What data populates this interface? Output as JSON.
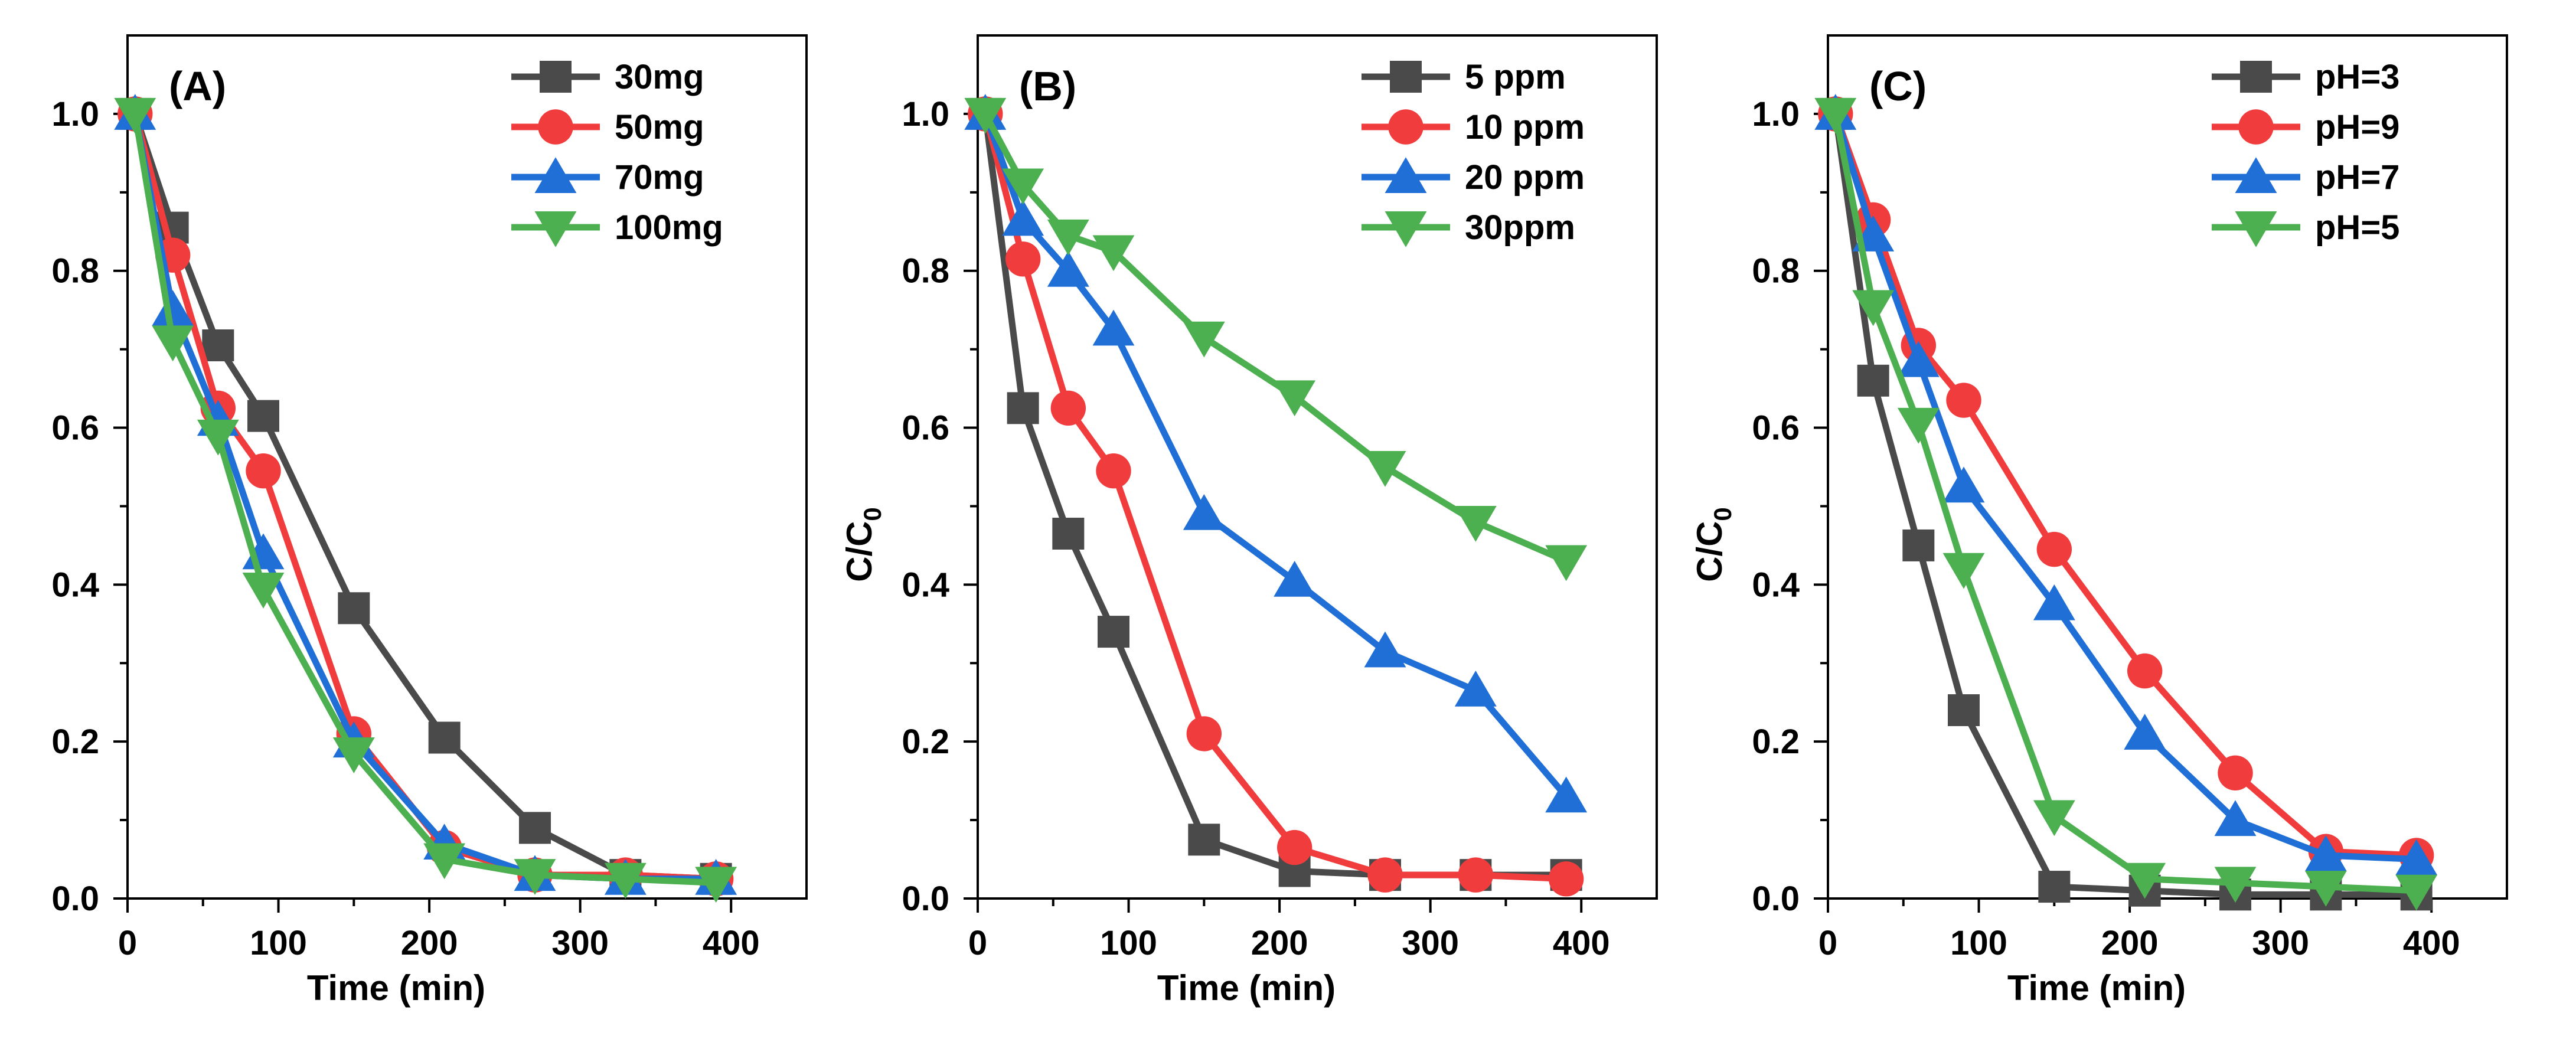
{
  "chart_data": [
    {
      "type": "line",
      "panel_label": "(A)",
      "xlabel": "Time (min)",
      "ylabel_main": "C/C",
      "ylabel_sub": "0",
      "ylabel_visible": false,
      "xlim": [
        0,
        450
      ],
      "ylim": [
        0,
        1.1
      ],
      "x_ticks": [
        0,
        100,
        200,
        300,
        400
      ],
      "y_ticks": [
        0.0,
        0.2,
        0.4,
        0.6,
        0.8,
        1.0
      ],
      "x_tick_labels": [
        "0",
        "100",
        "200",
        "300",
        "400"
      ],
      "y_tick_labels": [
        "0.0",
        "0.2",
        "0.4",
        "0.6",
        "0.8",
        "1.0"
      ],
      "legend_position": "top-right",
      "x": [
        5,
        30,
        60,
        90,
        150,
        210,
        270,
        330,
        390
      ],
      "series": [
        {
          "name": "30mg",
          "color": "#4a4a4a",
          "marker": "square",
          "values": [
            1.0,
            0.855,
            0.705,
            0.615,
            0.37,
            0.205,
            0.09,
            0.03,
            0.025
          ]
        },
        {
          "name": "50mg",
          "color": "#f03c3c",
          "marker": "circle",
          "values": [
            1.0,
            0.82,
            0.625,
            0.545,
            0.21,
            0.065,
            0.03,
            0.03,
            0.025
          ]
        },
        {
          "name": "70mg",
          "color": "#1f6fd6",
          "marker": "triangle-up",
          "values": [
            1.0,
            0.75,
            0.61,
            0.44,
            0.2,
            0.07,
            0.03,
            0.025,
            0.025
          ]
        },
        {
          "name": "100mg",
          "color": "#4caf50",
          "marker": "triangle-down",
          "values": [
            1.0,
            0.71,
            0.59,
            0.395,
            0.185,
            0.05,
            0.03,
            0.025,
            0.02
          ]
        }
      ]
    },
    {
      "type": "line",
      "panel_label": "(B)",
      "xlabel": "Time (min)",
      "ylabel_main": "C/C",
      "ylabel_sub": "0",
      "ylabel_visible": true,
      "xlim": [
        0,
        450
      ],
      "ylim": [
        0,
        1.1
      ],
      "x_ticks": [
        0,
        100,
        200,
        300,
        400
      ],
      "y_ticks": [
        0.0,
        0.2,
        0.4,
        0.6,
        0.8,
        1.0
      ],
      "x_tick_labels": [
        "0",
        "100",
        "200",
        "300",
        "400"
      ],
      "y_tick_labels": [
        "0.0",
        "0.2",
        "0.4",
        "0.6",
        "0.8",
        "1.0"
      ],
      "legend_position": "top-right",
      "x": [
        5,
        30,
        60,
        90,
        150,
        210,
        270,
        330,
        390
      ],
      "series": [
        {
          "name": "5 ppm",
          "color": "#4a4a4a",
          "marker": "square",
          "values": [
            1.0,
            0.625,
            0.465,
            0.34,
            0.075,
            0.035,
            0.03,
            0.03,
            0.03
          ]
        },
        {
          "name": "10 ppm",
          "color": "#f03c3c",
          "marker": "circle",
          "values": [
            1.0,
            0.815,
            0.625,
            0.545,
            0.21,
            0.065,
            0.03,
            0.03,
            0.025
          ]
        },
        {
          "name": "20 ppm",
          "color": "#1f6fd6",
          "marker": "triangle-up",
          "values": [
            1.0,
            0.865,
            0.8,
            0.725,
            0.49,
            0.405,
            0.315,
            0.265,
            0.13
          ]
        },
        {
          "name": "30ppm",
          "color": "#4caf50",
          "marker": "triangle-down",
          "values": [
            1.0,
            0.91,
            0.845,
            0.825,
            0.715,
            0.64,
            0.55,
            0.48,
            0.43
          ]
        }
      ]
    },
    {
      "type": "line",
      "panel_label": "(C)",
      "xlabel": "Time (min)",
      "ylabel_main": "C/C",
      "ylabel_sub": "0",
      "ylabel_visible": true,
      "xlim": [
        0,
        450
      ],
      "ylim": [
        0,
        1.1
      ],
      "x_ticks": [
        0,
        100,
        200,
        300,
        400
      ],
      "y_ticks": [
        0.0,
        0.2,
        0.4,
        0.6,
        0.8,
        1.0
      ],
      "x_tick_labels": [
        "0",
        "100",
        "200",
        "300",
        "400"
      ],
      "y_tick_labels": [
        "0.0",
        "0.2",
        "0.4",
        "0.6",
        "0.8",
        "1.0"
      ],
      "legend_position": "top-right",
      "x": [
        5,
        30,
        60,
        90,
        150,
        210,
        270,
        330,
        390
      ],
      "series": [
        {
          "name": "pH=3",
          "color": "#4a4a4a",
          "marker": "square",
          "values": [
            1.0,
            0.66,
            0.45,
            0.24,
            0.015,
            0.01,
            0.005,
            0.005,
            0.005
          ]
        },
        {
          "name": "pH=9",
          "color": "#f03c3c",
          "marker": "circle",
          "values": [
            1.0,
            0.865,
            0.705,
            0.635,
            0.445,
            0.29,
            0.16,
            0.06,
            0.055
          ]
        },
        {
          "name": "pH=7",
          "color": "#1f6fd6",
          "marker": "triangle-up",
          "values": [
            1.0,
            0.845,
            0.685,
            0.525,
            0.375,
            0.21,
            0.1,
            0.055,
            0.05
          ]
        },
        {
          "name": "pH=5",
          "color": "#4caf50",
          "marker": "triangle-down",
          "values": [
            1.0,
            0.755,
            0.605,
            0.42,
            0.105,
            0.025,
            0.02,
            0.015,
            0.01
          ]
        }
      ]
    }
  ]
}
